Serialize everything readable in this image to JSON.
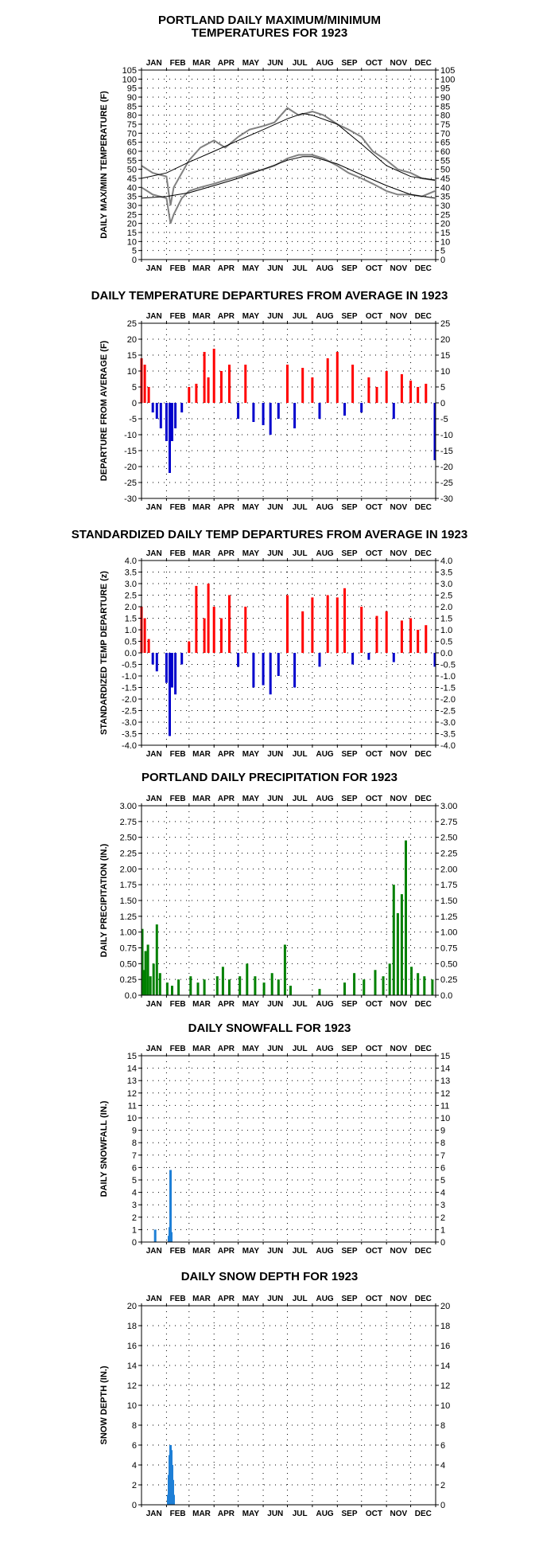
{
  "months": [
    "JAN",
    "FEB",
    "MAR",
    "APR",
    "MAY",
    "JUN",
    "JUL",
    "AUG",
    "SEP",
    "OCT",
    "NOV",
    "DEC"
  ],
  "colors": {
    "positive": "#ff0000",
    "negative": "#0000cc",
    "precip": "#008000",
    "snow": "#1e7fd6",
    "observed": "#808080",
    "normals": "#000000"
  },
  "charts": [
    {
      "title_line1": "PORTLAND DAILY MAXIMUM/MINIMUM",
      "title_line2": "TEMPERATURES FOR 1923",
      "ylabel": "DAILY MAX/MIN TEMPERATURE (F)"
    },
    {
      "title_line1": "DAILY TEMPERATURE DEPARTURES FROM AVERAGE IN 1923",
      "ylabel": "DEPARTURE FROM AVERAGE (F)"
    },
    {
      "title_line1": "STANDARDIZED DAILY TEMP DEPARTURES FROM AVERAGE IN 1923",
      "ylabel": "STANDARDIZED TEMP DEPARTURE (z)"
    },
    {
      "title_line1": "PORTLAND DAILY PRECIPITATION FOR 1923",
      "ylabel": "DAILY PRECIPITATION (IN.)"
    },
    {
      "title_line1": "DAILY SNOWFALL FOR 1923",
      "ylabel": "DAILY SNOWFALL (IN.)"
    },
    {
      "title_line1": "DAILY SNOW DEPTH FOR 1923",
      "ylabel": "SNOW DEPTH (IN.)"
    }
  ],
  "chart_data": [
    {
      "type": "line",
      "ylim": [
        0,
        105
      ],
      "yticks": [
        "0",
        "5",
        "10",
        "15",
        "20",
        "25",
        "30",
        "35",
        "40",
        "45",
        "50",
        "55",
        "60",
        "65",
        "70",
        "75",
        "80",
        "85",
        "90",
        "95",
        "100",
        "105"
      ],
      "series": [
        {
          "x": [
            "Jan 1",
            "Jan 15",
            "Feb 1",
            "Feb 6",
            "Feb 10",
            "Feb 20",
            "Mar 1",
            "Mar 15",
            "Apr 1",
            "Apr 15",
            "May 1",
            "May 15",
            "Jun 1",
            "Jun 15",
            "Jul 1",
            "Jul 15",
            "Aug 1",
            "Aug 15",
            "Sep 1",
            "Sep 15",
            "Oct 1",
            "Oct 15",
            "Nov 1",
            "Nov 15",
            "Dec 1",
            "Dec 15",
            "Dec 31"
          ],
          "high": [
            52,
            48,
            46,
            30,
            40,
            48,
            55,
            62,
            66,
            62,
            68,
            72,
            74,
            76,
            84,
            80,
            82,
            80,
            75,
            72,
            68,
            60,
            55,
            50,
            48,
            45,
            44
          ],
          "low": [
            40,
            36,
            34,
            20,
            25,
            34,
            38,
            40,
            42,
            44,
            46,
            48,
            50,
            52,
            56,
            58,
            58,
            56,
            52,
            48,
            45,
            42,
            38,
            36,
            36,
            35,
            38
          ]
        },
        {
          "x": [
            "Jan 1",
            "Feb 1",
            "Mar 1",
            "Apr 1",
            "May 1",
            "Jun 1",
            "Jul 1",
            "Jul 20",
            "Aug 1",
            "Sep 1",
            "Oct 1",
            "Nov 1",
            "Dec 1",
            "Dec 31"
          ],
          "normal_high": [
            45,
            48,
            54,
            60,
            66,
            72,
            78,
            81,
            80,
            75,
            64,
            52,
            46,
            44
          ]
        },
        {
          "x": [
            "Jan 1",
            "Feb 1",
            "Mar 1",
            "Apr 1",
            "May 1",
            "Jun 1",
            "Jul 1",
            "Jul 20",
            "Aug 1",
            "Sep 1",
            "Oct 1",
            "Nov 1",
            "Dec 1",
            "Dec 31"
          ],
          "normal_low": [
            34,
            35,
            37,
            41,
            45,
            50,
            55,
            57,
            57,
            53,
            47,
            41,
            36,
            34
          ]
        }
      ]
    },
    {
      "type": "bar",
      "ylim": [
        -30,
        25
      ],
      "yticks": [
        "25",
        "20",
        "15",
        "10",
        "5",
        "0",
        "-5",
        "-10",
        "-15",
        "-20",
        "-25",
        "-30"
      ],
      "x": [
        "Jan 1",
        "Jan 5",
        "Jan 10",
        "Jan 15",
        "Jan 20",
        "Jan 25",
        "Feb 1",
        "Feb 5",
        "Feb 8",
        "Feb 12",
        "Feb 20",
        "Mar 1",
        "Mar 10",
        "Mar 20",
        "Mar 25",
        "Apr 1",
        "Apr 10",
        "Apr 20",
        "May 1",
        "May 10",
        "May 20",
        "Jun 1",
        "Jun 10",
        "Jun 20",
        "Jul 1",
        "Jul 10",
        "Jul 20",
        "Aug 1",
        "Aug 10",
        "Aug 20",
        "Sep 1",
        "Sep 10",
        "Sep 20",
        "Oct 1",
        "Oct 10",
        "Oct 20",
        "Nov 1",
        "Nov 10",
        "Nov 20",
        "Dec 1",
        "Dec 10",
        "Dec 20",
        "Dec 31"
      ],
      "values": [
        14,
        12,
        5,
        -3,
        -5,
        -8,
        -12,
        -22,
        -12,
        -8,
        -3,
        5,
        6,
        16,
        8,
        17,
        10,
        12,
        -5,
        12,
        -6,
        -7,
        -10,
        -5,
        12,
        -8,
        11,
        8,
        -5,
        14,
        16,
        -4,
        12,
        -3,
        8,
        5,
        10,
        -5,
        9,
        7,
        5,
        6,
        -18
      ]
    },
    {
      "type": "bar",
      "ylim": [
        -4.0,
        4.0
      ],
      "yticks": [
        "4.0",
        "3.5",
        "3.0",
        "2.5",
        "2.0",
        "1.5",
        "1.0",
        "0.5",
        "0.0",
        "-0.5",
        "-1.0",
        "-1.5",
        "-2.0",
        "-2.5",
        "-3.0",
        "-3.5",
        "-4.0"
      ],
      "x": [
        "Jan 1",
        "Jan 5",
        "Jan 10",
        "Jan 15",
        "Jan 20",
        "Feb 1",
        "Feb 5",
        "Feb 8",
        "Feb 12",
        "Feb 20",
        "Mar 1",
        "Mar 10",
        "Mar 20",
        "Mar 25",
        "Apr 1",
        "Apr 10",
        "Apr 20",
        "May 1",
        "May 10",
        "May 20",
        "Jun 1",
        "Jun 10",
        "Jun 20",
        "Jul 1",
        "Jul 10",
        "Jul 20",
        "Aug 1",
        "Aug 10",
        "Aug 20",
        "Sep 1",
        "Sep 10",
        "Sep 20",
        "Oct 1",
        "Oct 10",
        "Oct 20",
        "Nov 1",
        "Nov 10",
        "Nov 20",
        "Dec 1",
        "Dec 10",
        "Dec 20",
        "Dec 31"
      ],
      "values": [
        2.0,
        1.5,
        0.6,
        -0.5,
        -0.8,
        -1.3,
        -3.6,
        -1.5,
        -1.8,
        -0.5,
        0.5,
        2.9,
        1.5,
        3.0,
        2.0,
        1.5,
        2.5,
        -0.6,
        2.0,
        -1.5,
        -1.4,
        -1.8,
        -1.0,
        2.5,
        -1.5,
        1.8,
        2.4,
        -0.6,
        2.5,
        2.4,
        2.8,
        -0.5,
        2.0,
        -0.3,
        1.6,
        1.8,
        -0.4,
        1.4,
        1.5,
        1.0,
        1.2,
        -0.6
      ]
    },
    {
      "type": "bar",
      "ylim": [
        0,
        3.0
      ],
      "yticks": [
        "0.0",
        "0.25",
        "0.50",
        "0.75",
        "1.00",
        "1.25",
        "1.50",
        "1.75",
        "2.00",
        "2.25",
        "2.50",
        "2.75",
        "3.00"
      ],
      "x": [
        "Jan 2",
        "Jan 4",
        "Jan 6",
        "Jan 9",
        "Jan 12",
        "Jan 16",
        "Jan 20",
        "Jan 24",
        "Feb 2",
        "Feb 8",
        "Feb 16",
        "Mar 3",
        "Mar 12",
        "Mar 20",
        "Apr 5",
        "Apr 12",
        "Apr 20",
        "May 3",
        "May 12",
        "May 22",
        "Jun 2",
        "Jun 12",
        "Jun 20",
        "Jun 28",
        "Jul 5",
        "Aug 10",
        "Sep 10",
        "Sep 22",
        "Oct 4",
        "Oct 18",
        "Oct 28",
        "Nov 5",
        "Nov 10",
        "Nov 15",
        "Nov 20",
        "Nov 25",
        "Dec 2",
        "Dec 10",
        "Dec 18",
        "Dec 28"
      ],
      "values": [
        1.05,
        0.4,
        0.7,
        0.8,
        0.3,
        0.5,
        1.12,
        0.35,
        0.2,
        0.15,
        0.25,
        0.3,
        0.2,
        0.25,
        0.3,
        0.45,
        0.25,
        0.3,
        0.5,
        0.3,
        0.2,
        0.35,
        0.25,
        0.8,
        0.15,
        0.1,
        0.2,
        0.35,
        0.25,
        0.4,
        0.3,
        0.5,
        1.75,
        1.3,
        1.6,
        2.45,
        0.45,
        0.35,
        0.3,
        0.25
      ]
    },
    {
      "type": "bar",
      "ylim": [
        0,
        15
      ],
      "yticks": [
        "0",
        "1",
        "2",
        "3",
        "4",
        "5",
        "6",
        "7",
        "8",
        "9",
        "10",
        "11",
        "12",
        "13",
        "14",
        "15"
      ],
      "x": [
        "Jan 18",
        "Feb 4",
        "Feb 5",
        "Feb 6",
        "Feb 7"
      ],
      "values": [
        1.0,
        0.5,
        1.2,
        5.8,
        0.8
      ]
    },
    {
      "type": "bar",
      "ylim": [
        0,
        20
      ],
      "yticks": [
        "0",
        "2",
        "4",
        "6",
        "8",
        "10",
        "12",
        "14",
        "16",
        "18",
        "20"
      ],
      "x": [
        "Feb 3",
        "Feb 4",
        "Feb 5",
        "Feb 6",
        "Feb 7",
        "Feb 8",
        "Feb 9",
        "Feb 10"
      ],
      "values": [
        1,
        3,
        5,
        6,
        5.5,
        4,
        2.5,
        1
      ]
    }
  ]
}
